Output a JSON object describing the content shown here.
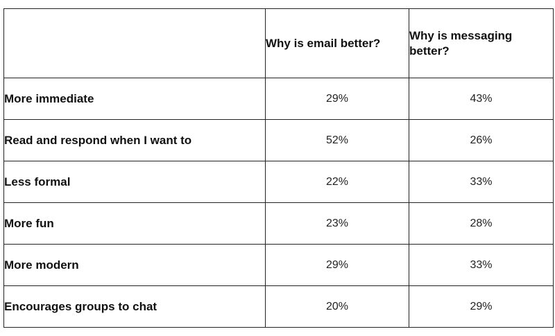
{
  "chart_data": {
    "type": "table",
    "columns": [
      "",
      "Why is email better?",
      "Why is messaging better?"
    ],
    "rows": [
      {
        "label": "More immediate",
        "values": [
          "29%",
          "43%"
        ]
      },
      {
        "label": "Read and respond when I want to",
        "values": [
          "52%",
          "26%"
        ]
      },
      {
        "label": "Less formal",
        "values": [
          "22%",
          "33%"
        ]
      },
      {
        "label": "More fun",
        "values": [
          "23%",
          "28%"
        ]
      },
      {
        "label": "More modern",
        "values": [
          "29%",
          "33%"
        ]
      },
      {
        "label": "Encourages groups to chat",
        "values": [
          "20%",
          "29%"
        ]
      }
    ]
  },
  "colors": {
    "border": "#222222",
    "text": "#111111",
    "background": "#ffffff"
  }
}
